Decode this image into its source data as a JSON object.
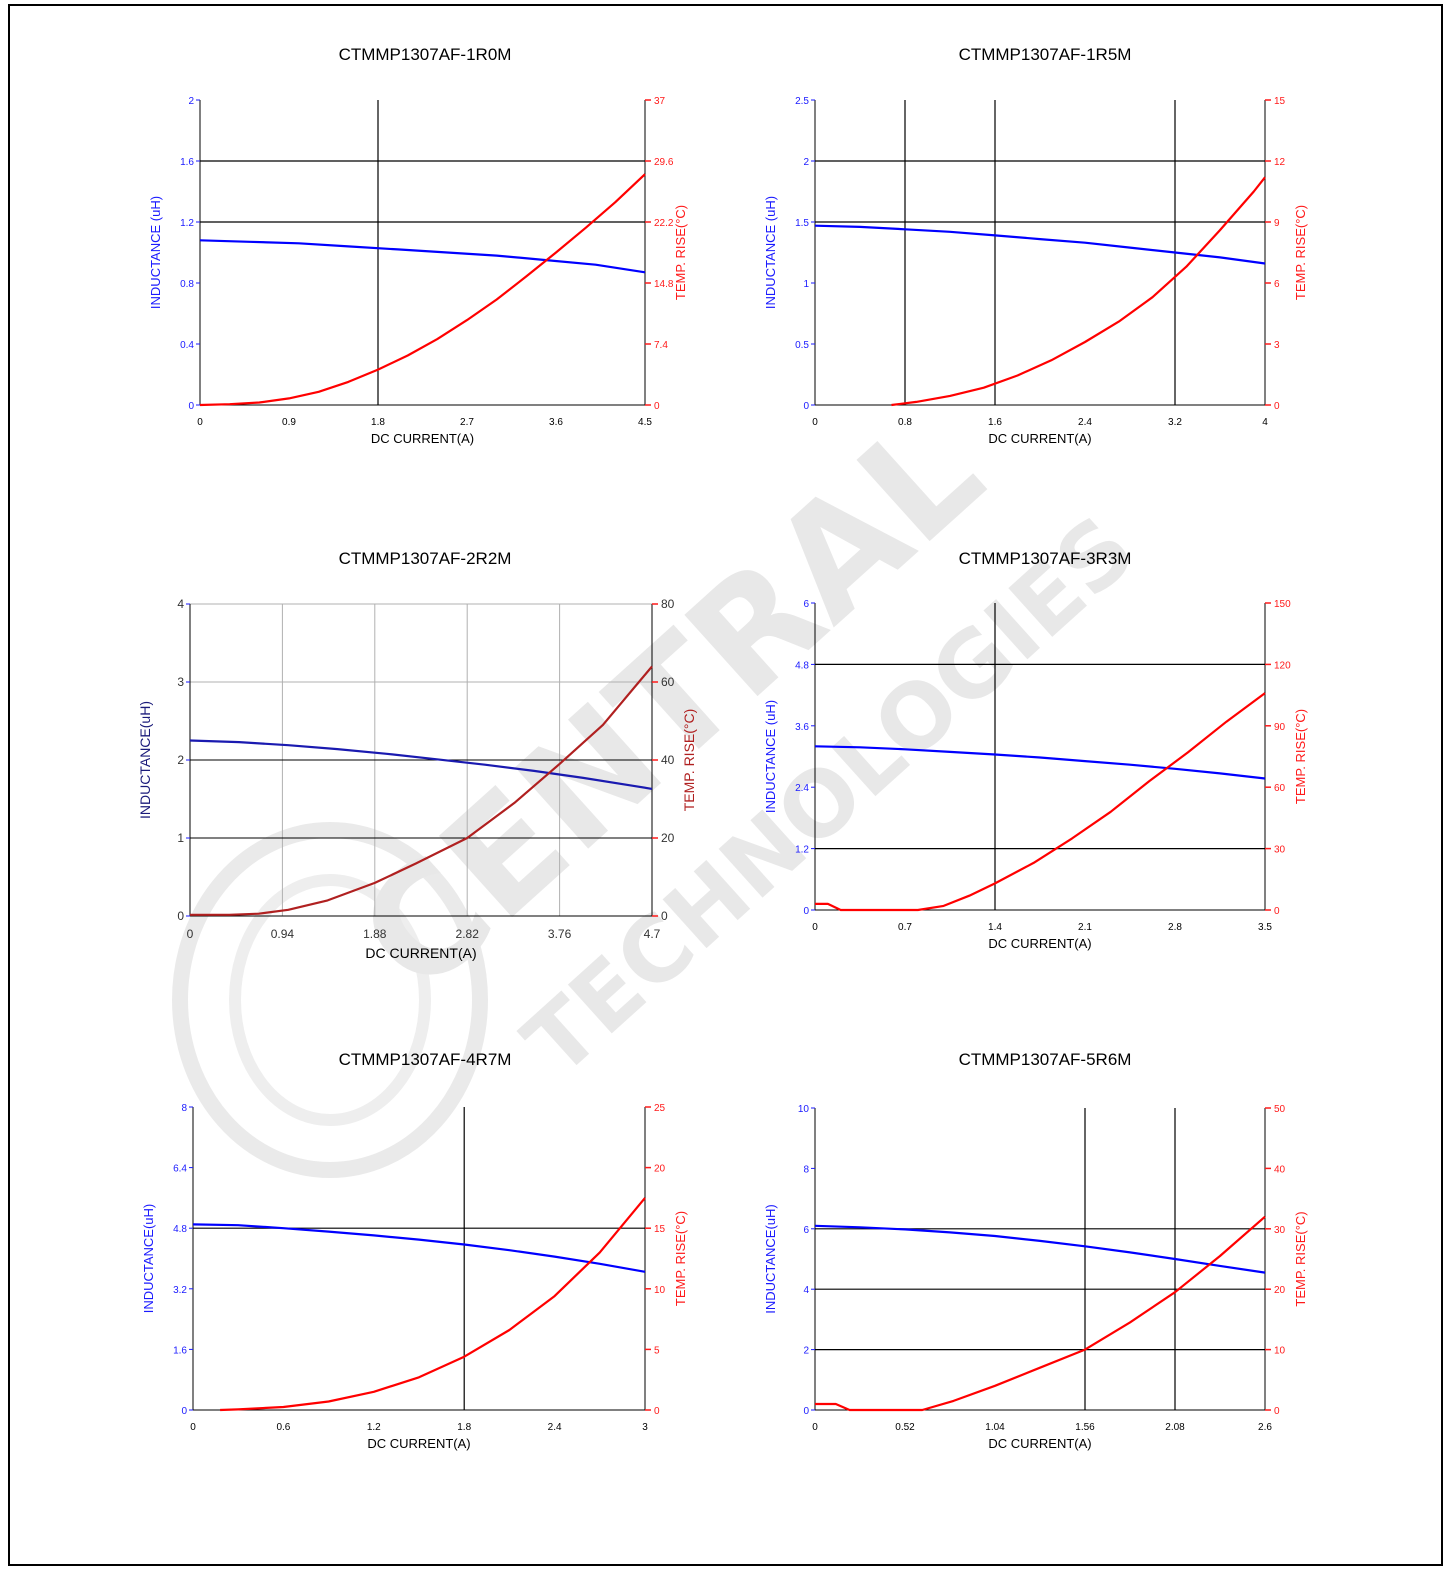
{
  "chart_data": [
    {
      "type": "line",
      "title": "CTMMP1307AF-1R0M",
      "xlabel": "DC CURRENT(A)",
      "ylabel": "INDUCTANCE (uH)",
      "y2label": "TEMP. RISE(°C)",
      "xlim": [
        0,
        4.5
      ],
      "ylim": [
        0,
        2
      ],
      "y2lim": [
        0,
        37
      ],
      "xticks": [
        "0",
        "0.9",
        "1.8",
        "2.7",
        "3.6",
        "4.5"
      ],
      "yticks": [
        "0",
        "0.4",
        "0.8",
        "1.2",
        "1.6",
        "2"
      ],
      "y2ticks": [
        "0",
        "7.4",
        "14.8",
        "22.2",
        "29.6",
        "37"
      ],
      "grid": "partial",
      "series": [
        {
          "axis": "left",
          "color": "#0000ff",
          "x": [
            0,
            0.5,
            1.0,
            1.5,
            2.0,
            2.5,
            3.0,
            3.5,
            4.0,
            4.5
          ],
          "y": [
            1.08,
            1.07,
            1.06,
            1.04,
            1.02,
            1.0,
            0.98,
            0.95,
            0.92,
            0.87
          ]
        },
        {
          "axis": "right",
          "color": "#ff0000",
          "x": [
            0,
            0.3,
            0.6,
            0.9,
            1.2,
            1.5,
            1.8,
            2.1,
            2.4,
            2.7,
            3.0,
            3.3,
            3.6,
            3.9,
            4.2,
            4.5
          ],
          "y": [
            0,
            0.1,
            0.3,
            0.8,
            1.6,
            2.8,
            4.3,
            6.0,
            8.0,
            10.3,
            12.8,
            15.6,
            18.5,
            21.5,
            24.6,
            28.0
          ]
        }
      ]
    },
    {
      "type": "line",
      "title": "CTMMP1307AF-1R5M",
      "xlabel": "DC CURRENT(A)",
      "ylabel": "INDUCTANCE (uH)",
      "y2label": "TEMP. RISE(°C)",
      "xlim": [
        0,
        4
      ],
      "ylim": [
        0,
        2.5
      ],
      "y2lim": [
        0,
        15
      ],
      "xticks": [
        "0",
        "0.8",
        "1.6",
        "2.4",
        "3.2",
        "4"
      ],
      "yticks": [
        "0",
        "0.5",
        "1",
        "1.5",
        "2",
        "2.5"
      ],
      "y2ticks": [
        "0",
        "3",
        "6",
        "9",
        "12",
        "15"
      ],
      "grid": "partial",
      "series": [
        {
          "axis": "left",
          "color": "#0000ff",
          "x": [
            0,
            0.4,
            0.8,
            1.2,
            1.6,
            2.0,
            2.4,
            2.8,
            3.2,
            3.6,
            4.0
          ],
          "y": [
            1.47,
            1.46,
            1.44,
            1.42,
            1.39,
            1.36,
            1.33,
            1.29,
            1.25,
            1.21,
            1.16
          ]
        },
        {
          "axis": "right",
          "color": "#ff0000",
          "x": [
            0.68,
            0.9,
            1.2,
            1.5,
            1.8,
            2.1,
            2.4,
            2.7,
            3.0,
            3.3,
            3.6,
            3.9,
            4.0
          ],
          "y": [
            0,
            0.15,
            0.45,
            0.85,
            1.45,
            2.2,
            3.1,
            4.1,
            5.3,
            6.8,
            8.6,
            10.5,
            11.2
          ]
        }
      ]
    },
    {
      "type": "line",
      "title": "CTMMP1307AF-2R2M",
      "xlabel": "DC CURRENT(A)",
      "ylabel": "INDUCTANCE(uH)",
      "y2label": "TEMP. RISE(°C)",
      "xlim": [
        0,
        4.7
      ],
      "ylim": [
        0,
        4
      ],
      "y2lim": [
        0,
        80
      ],
      "xticks": [
        "0",
        "0.94",
        "1.88",
        "2.82",
        "3.76",
        "4.7"
      ],
      "yticks": [
        "0",
        "1",
        "2",
        "3",
        "4"
      ],
      "y2ticks": [
        "0",
        "20",
        "40",
        "60",
        "80"
      ],
      "grid": "full",
      "series": [
        {
          "axis": "left",
          "color": "#1a1ab0",
          "x": [
            0,
            0.5,
            1.0,
            1.5,
            2.0,
            2.5,
            3.0,
            3.5,
            4.0,
            4.5,
            4.7
          ],
          "y": [
            2.25,
            2.23,
            2.19,
            2.14,
            2.08,
            2.01,
            1.94,
            1.86,
            1.77,
            1.67,
            1.63
          ]
        },
        {
          "axis": "right",
          "color": "#b02020",
          "x": [
            0,
            0.4,
            0.7,
            1.0,
            1.4,
            1.88,
            2.3,
            2.82,
            3.3,
            3.76,
            4.2,
            4.7
          ],
          "y": [
            0.3,
            0.3,
            0.6,
            1.6,
            4.0,
            8.5,
            13.5,
            20.0,
            29.0,
            39.0,
            49.0,
            64.0
          ]
        }
      ]
    },
    {
      "type": "line",
      "title": "CTMMP1307AF-3R3M",
      "xlabel": "DC CURRENT(A)",
      "ylabel": "INDUCTANCE (uH)",
      "y2label": "TEMP. RISE(°C)",
      "xlim": [
        0,
        3.5
      ],
      "ylim": [
        0,
        6
      ],
      "y2lim": [
        0,
        150
      ],
      "xticks": [
        "0",
        "0.7",
        "1.4",
        "2.1",
        "2.8",
        "3.5"
      ],
      "yticks": [
        "0",
        "1.2",
        "2.4",
        "3.6",
        "4.8",
        "6"
      ],
      "y2ticks": [
        "0",
        "30",
        "60",
        "90",
        "120",
        "150"
      ],
      "grid": "partial",
      "series": [
        {
          "axis": "left",
          "color": "#0000ff",
          "x": [
            0,
            0.35,
            0.7,
            1.05,
            1.4,
            1.75,
            2.1,
            2.45,
            2.8,
            3.15,
            3.5
          ],
          "y": [
            3.2,
            3.18,
            3.14,
            3.09,
            3.04,
            2.98,
            2.91,
            2.84,
            2.76,
            2.67,
            2.57
          ]
        },
        {
          "axis": "right",
          "color": "#ff0000",
          "x": [
            0,
            0.1,
            0.2,
            0.8,
            1.0,
            1.2,
            1.4,
            1.7,
            2.0,
            2.3,
            2.6,
            2.9,
            3.2,
            3.5
          ],
          "y": [
            3,
            3,
            0,
            0,
            2,
            7,
            13,
            23,
            35,
            48,
            63,
            77,
            92,
            106
          ]
        }
      ]
    },
    {
      "type": "line",
      "title": "CTMMP1307AF-4R7M",
      "xlabel": "DC CURRENT(A)",
      "ylabel": "INDUCTANCE(uH)",
      "y2label": "TEMP. RISE(°C)",
      "xlim": [
        0,
        3
      ],
      "ylim": [
        0,
        8
      ],
      "y2lim": [
        0,
        25
      ],
      "xticks": [
        "0",
        "0.6",
        "1.2",
        "1.8",
        "2.4",
        "3"
      ],
      "yticks": [
        "0",
        "1.6",
        "3.2",
        "4.8",
        "6.4",
        "8"
      ],
      "y2ticks": [
        "0",
        "5",
        "10",
        "15",
        "20",
        "25"
      ],
      "grid": "partial",
      "series": [
        {
          "axis": "left",
          "color": "#0000ff",
          "x": [
            0,
            0.3,
            0.6,
            0.9,
            1.2,
            1.5,
            1.8,
            2.1,
            2.4,
            2.7,
            3.0
          ],
          "y": [
            4.9,
            4.88,
            4.8,
            4.71,
            4.61,
            4.5,
            4.37,
            4.22,
            4.05,
            3.86,
            3.65
          ]
        },
        {
          "axis": "right",
          "color": "#ff0000",
          "x": [
            0.18,
            0.3,
            0.6,
            0.9,
            1.2,
            1.5,
            1.8,
            2.1,
            2.4,
            2.7,
            3.0
          ],
          "y": [
            0,
            0.05,
            0.25,
            0.7,
            1.5,
            2.7,
            4.4,
            6.6,
            9.4,
            13.0,
            17.5
          ]
        }
      ]
    },
    {
      "type": "line",
      "title": "CTMMP1307AF-5R6M",
      "xlabel": "DC CURRENT(A)",
      "ylabel": "INDUCTANCE(uH)",
      "y2label": "TEMP. RISE(°C)",
      "xlim": [
        0,
        2.6
      ],
      "ylim": [
        0,
        10
      ],
      "y2lim": [
        0,
        50
      ],
      "xticks": [
        "0",
        "0.52",
        "1.04",
        "1.56",
        "2.08",
        "2.6"
      ],
      "yticks": [
        "0",
        "2",
        "4",
        "6",
        "8",
        "10"
      ],
      "y2ticks": [
        "0",
        "10",
        "20",
        "30",
        "40",
        "50"
      ],
      "grid": "partial",
      "series": [
        {
          "axis": "left",
          "color": "#0000ff",
          "x": [
            0,
            0.26,
            0.52,
            0.78,
            1.04,
            1.3,
            1.56,
            1.82,
            2.08,
            2.34,
            2.6
          ],
          "y": [
            6.1,
            6.05,
            5.98,
            5.88,
            5.76,
            5.6,
            5.42,
            5.22,
            5.0,
            4.77,
            4.55
          ]
        },
        {
          "axis": "right",
          "color": "#ff0000",
          "x": [
            0,
            0.12,
            0.2,
            0.62,
            0.8,
            1.04,
            1.3,
            1.56,
            1.82,
            2.08,
            2.34,
            2.6
          ],
          "y": [
            1,
            1,
            0,
            0,
            1.5,
            4,
            7,
            10,
            14.5,
            19.5,
            25.5,
            32
          ]
        }
      ]
    }
  ]
}
